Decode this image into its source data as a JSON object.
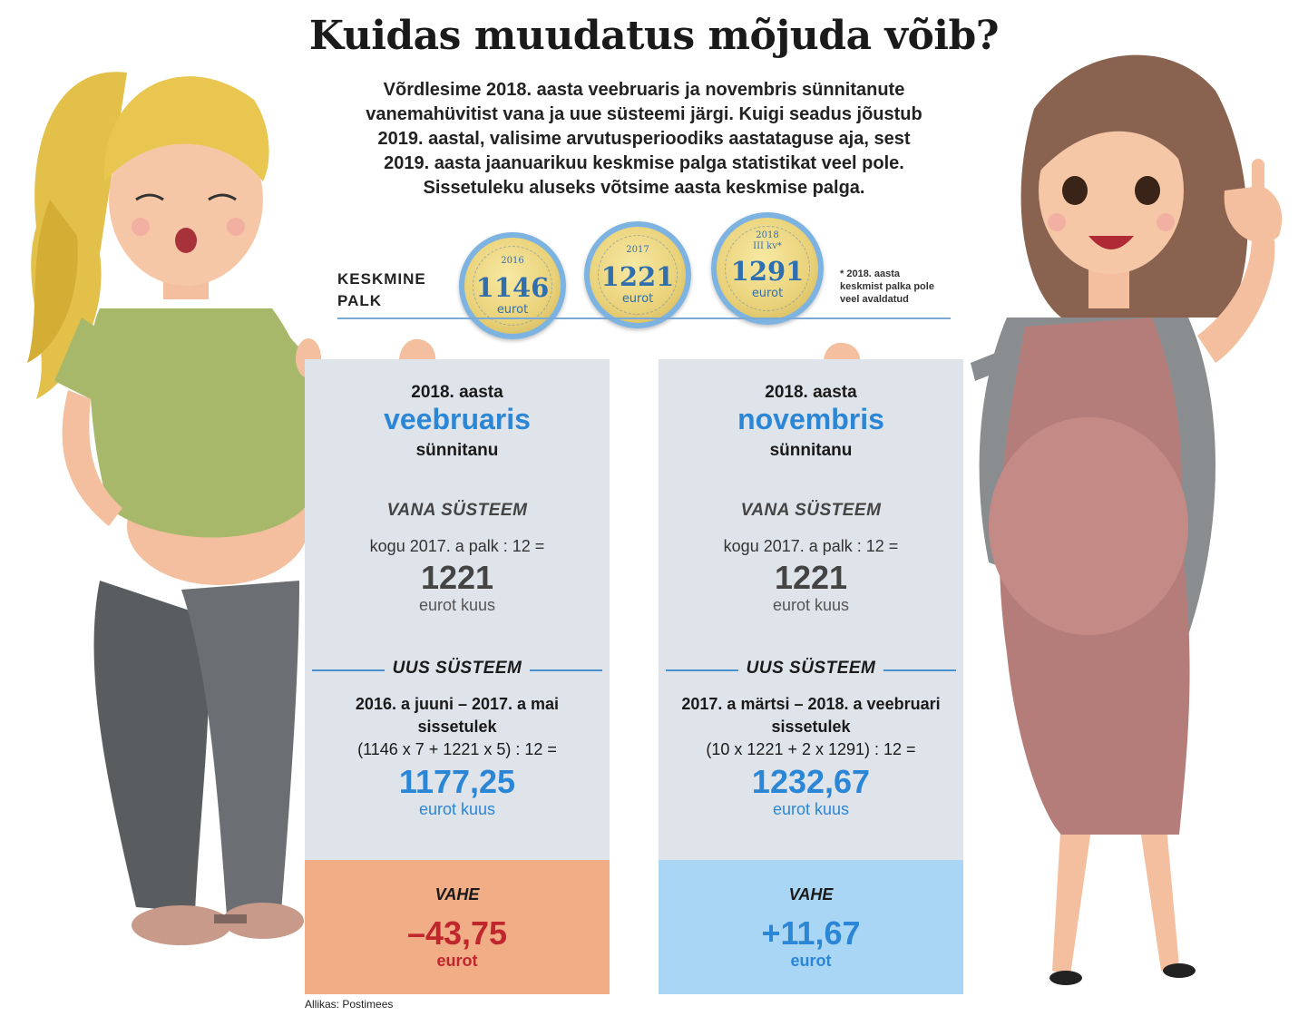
{
  "title": "Kuidas muudatus mõjuda võib?",
  "intro_lines": [
    "Võrdlesime 2018. aasta veebruaris ja novembris sünnitanute",
    "vanemahüvitist vana ja uue süsteemi järgi. Kuigi seadus jõustub",
    "2019. aastal, valisime arvutusperioodiks aastataguse aja, sest",
    "2019. aasta jaanuarikuu keskmise palga statistikat veel pole.",
    "Sissetuleku aluseks võtsime aasta keskmise palga."
  ],
  "salary": {
    "label_line1": "KESKMINE",
    "label_line2": "PALK",
    "coins": [
      {
        "year": "2016",
        "year2": "",
        "value": "1146",
        "unit": "eurot"
      },
      {
        "year": "2017",
        "year2": "",
        "value": "1221",
        "unit": "eurot"
      },
      {
        "year": "2018",
        "year2": "III kv*",
        "value": "1291",
        "unit": "eurot"
      }
    ],
    "footnote_lines": [
      "* 2018. aasta",
      "keskmist palka pole",
      "veel avaldatud"
    ]
  },
  "panels": [
    {
      "year_label": "2018. aasta",
      "month": "veebruaris",
      "born_label": "sünnitanu",
      "old_heading": "VANA SÜSTEEM",
      "old_formula": "kogu 2017. a palk : 12 =",
      "old_value": "1221",
      "old_unit": "eurot kuus",
      "new_heading": "UUS SÜSTEEM",
      "new_period": "2016. a juuni – 2017. a mai",
      "new_income_label": "sissetulek",
      "new_formula": "(1146 x 7 + 1221 x 5) : 12  =",
      "new_value": "1177,25",
      "new_unit": "eurot kuus",
      "diff_label": "VAHE",
      "diff_value": "–43,75",
      "diff_unit": "eurot",
      "foot_color": "#f0ad86",
      "diff_color": "#c0272d"
    },
    {
      "year_label": "2018. aasta",
      "month": "novembris",
      "born_label": "sünnitanu",
      "old_heading": "VANA SÜSTEEM",
      "old_formula": "kogu 2017. a palk : 12 =",
      "old_value": "1221",
      "old_unit": "eurot kuus",
      "new_heading": "UUS SÜSTEEM",
      "new_period": "2017. a märtsi – 2018. a veebruari",
      "new_income_label": "sissetulek",
      "new_formula": "(10 x 1221 + 2 x 1291) : 12 =",
      "new_value": "1232,67",
      "new_unit": "eurot kuus",
      "diff_label": "VAHE",
      "diff_value": "+11,67",
      "diff_unit": "eurot",
      "foot_color": "#a9d6f5",
      "diff_color": "#2c86d6"
    }
  ],
  "source": "Allikas: Postimees"
}
